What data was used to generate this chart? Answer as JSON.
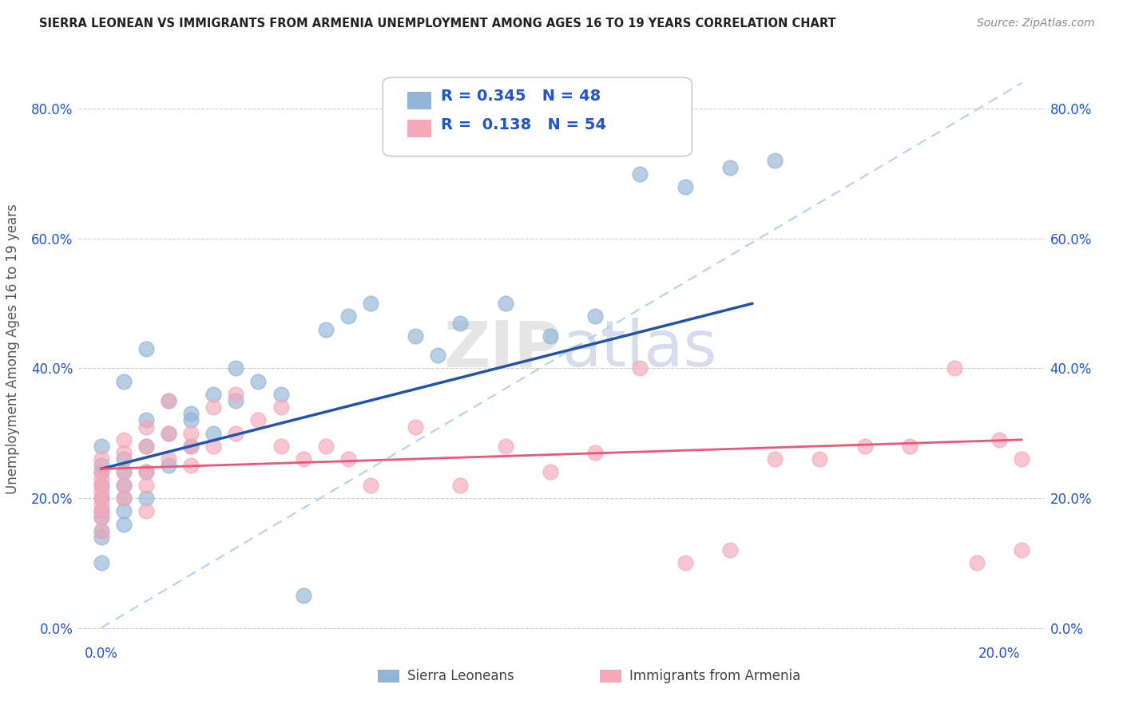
{
  "title": "SIERRA LEONEAN VS IMMIGRANTS FROM ARMENIA UNEMPLOYMENT AMONG AGES 16 TO 19 YEARS CORRELATION CHART",
  "source": "Source: ZipAtlas.com",
  "ylabel": "Unemployment Among Ages 16 to 19 years",
  "yticks_labels": [
    "0.0%",
    "20.0%",
    "40.0%",
    "60.0%",
    "80.0%"
  ],
  "ytick_vals": [
    0.0,
    20.0,
    40.0,
    60.0,
    80.0
  ],
  "xticks_labels": [
    "0.0%",
    "20.0%"
  ],
  "xtick_vals": [
    0.0,
    20.0
  ],
  "xlim": [
    -0.5,
    21.0
  ],
  "ylim": [
    -2.0,
    88.0
  ],
  "watermark": "ZIPatlas",
  "legend1_R": "0.345",
  "legend1_N": "48",
  "legend2_R": "0.138",
  "legend2_N": "54",
  "blue_color": "#91B4D8",
  "pink_color": "#F4A8B8",
  "blue_line_color": "#2255AA",
  "pink_line_color": "#EE5577",
  "diagonal_color": "#AACCEE",
  "title_color": "#222222",
  "legend_text_color": "#2255CC",
  "tick_color": "#2255CC",
  "sierra_x": [
    0.0,
    0.0,
    0.0,
    0.0,
    0.0,
    0.0,
    0.0,
    0.0,
    0.0,
    0.0,
    0.5,
    0.5,
    0.5,
    0.5,
    0.5,
    0.5,
    1.0,
    1.0,
    1.0,
    1.0,
    1.5,
    1.5,
    1.5,
    2.0,
    2.0,
    2.5,
    2.5,
    3.0,
    3.5,
    4.0,
    5.0,
    5.5,
    6.0,
    7.0,
    7.5,
    8.0,
    9.0,
    10.0,
    11.0,
    12.0,
    13.0,
    14.0,
    15.0,
    0.5,
    1.0,
    2.0,
    3.0,
    4.5
  ],
  "sierra_y": [
    18.0,
    20.0,
    22.0,
    24.0,
    25.0,
    10.0,
    15.0,
    14.0,
    17.0,
    28.0,
    16.0,
    18.0,
    20.0,
    22.0,
    24.0,
    26.0,
    20.0,
    24.0,
    28.0,
    32.0,
    25.0,
    30.0,
    35.0,
    28.0,
    32.0,
    30.0,
    36.0,
    35.0,
    38.0,
    36.0,
    46.0,
    48.0,
    50.0,
    45.0,
    42.0,
    47.0,
    50.0,
    45.0,
    48.0,
    70.0,
    68.0,
    71.0,
    72.0,
    38.0,
    43.0,
    33.0,
    40.0,
    5.0
  ],
  "armenia_x": [
    0.0,
    0.0,
    0.0,
    0.0,
    0.0,
    0.0,
    0.0,
    0.0,
    0.0,
    0.0,
    0.5,
    0.5,
    0.5,
    0.5,
    0.5,
    1.0,
    1.0,
    1.0,
    1.0,
    1.0,
    1.5,
    1.5,
    1.5,
    2.0,
    2.0,
    2.0,
    2.5,
    2.5,
    3.0,
    3.0,
    3.5,
    4.0,
    4.0,
    4.5,
    5.0,
    5.5,
    6.0,
    7.0,
    8.0,
    9.0,
    10.0,
    11.0,
    12.0,
    13.0,
    14.0,
    15.0,
    16.0,
    17.0,
    18.0,
    19.0,
    19.5,
    20.0,
    20.5,
    20.5
  ],
  "armenia_y": [
    20.0,
    22.0,
    24.0,
    26.0,
    18.0,
    15.0,
    17.0,
    19.0,
    21.0,
    23.0,
    20.0,
    22.0,
    24.0,
    27.0,
    29.0,
    18.0,
    22.0,
    24.0,
    28.0,
    31.0,
    26.0,
    30.0,
    35.0,
    25.0,
    30.0,
    28.0,
    28.0,
    34.0,
    30.0,
    36.0,
    32.0,
    28.0,
    34.0,
    26.0,
    28.0,
    26.0,
    22.0,
    31.0,
    22.0,
    28.0,
    24.0,
    27.0,
    40.0,
    10.0,
    12.0,
    26.0,
    26.0,
    28.0,
    28.0,
    40.0,
    10.0,
    29.0,
    26.0,
    12.0
  ],
  "blue_line_x": [
    0.0,
    14.5
  ],
  "blue_line_y": [
    24.5,
    50.0
  ],
  "pink_line_x": [
    0.0,
    20.5
  ],
  "pink_line_y": [
    24.5,
    29.0
  ],
  "diag_line_x": [
    0.0,
    20.5
  ],
  "diag_line_y": [
    0.0,
    84.0
  ]
}
